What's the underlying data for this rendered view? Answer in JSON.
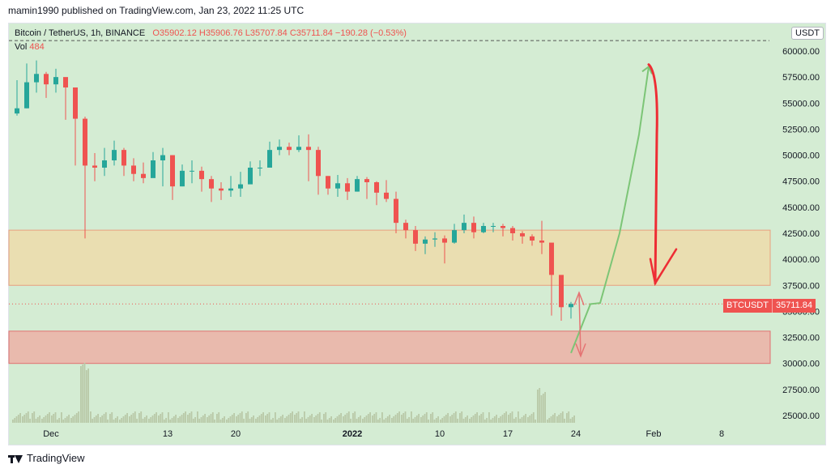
{
  "caption": "mamin1990 published on TradingView.com, Jan 23, 2022 11:25 UTC",
  "legend": {
    "symbol": "Bitcoin / TetherUS, 1h, BINANCE",
    "open": "O35902.12",
    "high": "H35906.76",
    "low": "L35707.84",
    "close": "C35711.84",
    "change": "−190.28 (−0.53%)",
    "vol_label": "Vol",
    "vol_value": "484"
  },
  "currency": "USDT",
  "price_tag": {
    "symbol": "BTCUSDT",
    "price": "35711.84"
  },
  "footer": {
    "brand": "TradingView"
  },
  "colors": {
    "background": "#d4ecd3",
    "up_candle": "#26a69a",
    "down_candle": "#ef5350",
    "upper_zone": "#f2d9a6",
    "lower_zone": "#f0a9a0",
    "projection_up": "#7cc576",
    "projection_down": "#ee2d34"
  },
  "chart_data": {
    "type": "line",
    "title": "Bitcoin / TetherUS, 1h, BINANCE",
    "xlabel": "",
    "ylabel": "",
    "x_tick_labels": [
      "Dec",
      "13",
      "20",
      "2022",
      "10",
      "17",
      "24",
      "Feb",
      "8"
    ],
    "y_tick_labels": [
      "60000.00",
      "57500.00",
      "55000.00",
      "52500.00",
      "50000.00",
      "47500.00",
      "45000.00",
      "42500.00",
      "40000.00",
      "37500.00",
      "35000.00",
      "32500.00",
      "30000.00",
      "27500.00",
      "25000.00"
    ],
    "ylim": [
      24300,
      61400
    ],
    "grid": true,
    "series": [
      {
        "type": "candlestick-trace",
        "x": [
          "2021-11-27",
          "2021-11-28",
          "2021-11-29",
          "2021-11-30",
          "2021-12-01",
          "2021-12-02",
          "2021-12-03",
          "2021-12-04",
          "2021-12-05",
          "2021-12-06",
          "2021-12-07",
          "2021-12-08",
          "2021-12-09",
          "2021-12-10",
          "2021-12-11",
          "2021-12-12",
          "2021-12-13",
          "2021-12-14",
          "2021-12-15",
          "2021-12-16",
          "2021-12-17",
          "2021-12-18",
          "2021-12-19",
          "2021-12-20",
          "2021-12-21",
          "2021-12-22",
          "2021-12-23",
          "2021-12-24",
          "2021-12-25",
          "2021-12-26",
          "2021-12-27",
          "2021-12-28",
          "2021-12-29",
          "2021-12-30",
          "2021-12-31",
          "2022-01-01",
          "2022-01-02",
          "2022-01-03",
          "2022-01-04",
          "2022-01-05",
          "2022-01-06",
          "2022-01-07",
          "2022-01-08",
          "2022-01-09",
          "2022-01-10",
          "2022-01-11",
          "2022-01-12",
          "2022-01-13",
          "2022-01-14",
          "2022-01-15",
          "2022-01-16",
          "2022-01-17",
          "2022-01-18",
          "2022-01-19",
          "2022-01-20",
          "2022-01-21",
          "2022-01-22",
          "2022-01-23"
        ],
        "values": [
          54500,
          57000,
          57800,
          56800,
          57500,
          56500,
          53500,
          49000,
          48800,
          49500,
          50500,
          49000,
          48200,
          47800,
          49500,
          50000,
          47000,
          48500,
          48500,
          47700,
          46800,
          46600,
          46800,
          47200,
          48800,
          48800,
          50500,
          50800,
          50500,
          50800,
          50500,
          48000,
          46800,
          47300,
          46500,
          47700,
          47400,
          46400,
          45800,
          43500,
          42800,
          41500,
          41900,
          42000,
          41600,
          42800,
          43500,
          42600,
          43200,
          43200,
          43000,
          42500,
          42200,
          41800,
          41600,
          38500,
          35400,
          35712
        ],
        "high": [
          57200,
          58800,
          59100,
          58000,
          58300,
          57200,
          56000,
          53700,
          50200,
          50700,
          51400,
          50700,
          49700,
          49300,
          50300,
          50700,
          50000,
          49100,
          49500,
          48900,
          48000,
          47400,
          48000,
          48400,
          49400,
          49500,
          51300,
          51500,
          51200,
          51900,
          52000,
          50800,
          48000,
          48100,
          47800,
          48000,
          47900,
          47500,
          47600,
          46500,
          43800,
          43200,
          42200,
          42600,
          42300,
          43400,
          44300,
          44100,
          43500,
          43500,
          43400,
          43200,
          42700,
          42400,
          43700,
          41500,
          36700,
          35907
        ],
        "low": [
          53800,
          54500,
          56000,
          55500,
          56000,
          53400,
          49000,
          42000,
          47500,
          48000,
          49000,
          48000,
          47500,
          47300,
          48500,
          47000,
          45700,
          47000,
          47300,
          46500,
          45500,
          45700,
          46000,
          46000,
          47500,
          48000,
          50000,
          50000,
          50000,
          50300,
          47500,
          46200,
          46200,
          46000,
          45700,
          46500,
          45800,
          45200,
          45500,
          42500,
          42000,
          40800,
          40500,
          41200,
          39600,
          41500,
          42500,
          42000,
          42500,
          42600,
          42200,
          41800,
          41500,
          41300,
          40500,
          34600,
          34100,
          34300
        ]
      }
    ],
    "annotations": {
      "zones": [
        {
          "label": "upper zone",
          "y_low": 37500,
          "y_high": 42800
        },
        {
          "label": "lower zone",
          "y_low": 30000,
          "y_high": 33100
        }
      ],
      "current_price_line": 35711.84,
      "top_dashed_line": 61000,
      "projection_up": {
        "x": [
          "2022-01-23",
          "2022-01-25",
          "2022-01-26",
          "2022-01-28",
          "2022-01-30",
          "2022-01-31"
        ],
        "values": [
          31000,
          35700,
          35800,
          42500,
          52000,
          58500
        ]
      },
      "projection_down": {
        "x": [
          "2022-01-31",
          "2022-02-01",
          "2022-02-01",
          "2022-02-01"
        ],
        "values": [
          58700,
          57800,
          52000,
          37700
        ]
      }
    }
  }
}
